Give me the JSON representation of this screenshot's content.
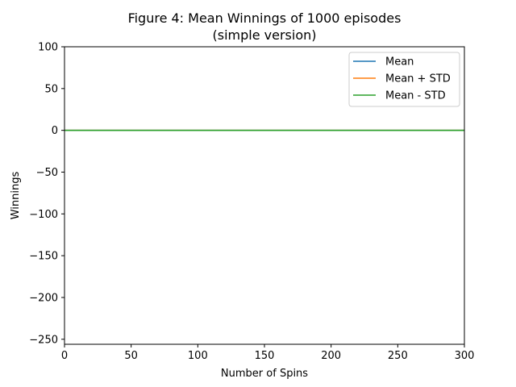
{
  "chart_data": {
    "type": "line",
    "title": "Figure 4: Mean Winnings of 1000 episodes\n(simple version)",
    "title_lines": [
      "Figure 4: Mean Winnings of 1000 episodes",
      "(simple version)"
    ],
    "xlabel": "Number of Spins",
    "ylabel": "Winnings",
    "xlim": [
      0,
      300
    ],
    "ylim": [
      -256,
      100
    ],
    "xticks": [
      0,
      50,
      100,
      150,
      200,
      250,
      300
    ],
    "yticks": [
      100,
      50,
      0,
      -50,
      -100,
      -150,
      -200,
      -250
    ],
    "xtick_labels": [
      "0",
      "50",
      "100",
      "150",
      "200",
      "250",
      "300"
    ],
    "ytick_labels": [
      "100",
      "50",
      "0",
      "−50",
      "−100",
      "−150",
      "−200",
      "−250"
    ],
    "grid": false,
    "legend_position": "upper right",
    "series": [
      {
        "name": "Mean",
        "color": "#1f77b4",
        "x": [
          0,
          300
        ],
        "y": [
          0,
          0
        ]
      },
      {
        "name": "Mean + STD",
        "color": "#ff7f0e",
        "x": [
          0,
          300
        ],
        "y": [
          0,
          0
        ]
      },
      {
        "name": "Mean - STD",
        "color": "#2ca02c",
        "x": [
          0,
          300
        ],
        "y": [
          0,
          0
        ]
      }
    ]
  }
}
